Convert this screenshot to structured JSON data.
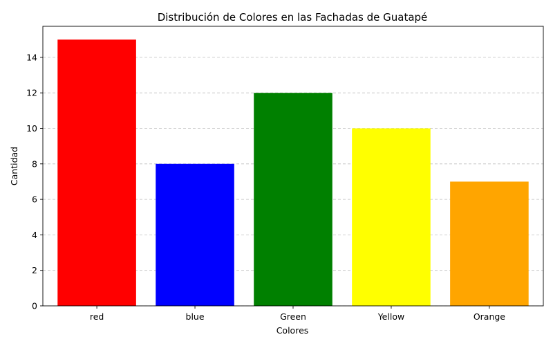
{
  "chart_data": {
    "type": "bar",
    "title": "Distribución de Colores en las Fachadas de Guatapé",
    "xlabel": "Colores",
    "ylabel": "Cantidad",
    "categories": [
      "red",
      "blue",
      "Green",
      "Yellow",
      "Orange"
    ],
    "values": [
      15,
      8,
      12,
      10,
      7
    ],
    "colors": [
      "#ff0000",
      "#0000ff",
      "#008000",
      "#ffff00",
      "#ffa500"
    ],
    "ylim": [
      0,
      15.75
    ],
    "yticks": [
      0,
      2,
      4,
      6,
      8,
      10,
      12,
      14
    ],
    "grid": "y-dashed",
    "legend": "none"
  }
}
